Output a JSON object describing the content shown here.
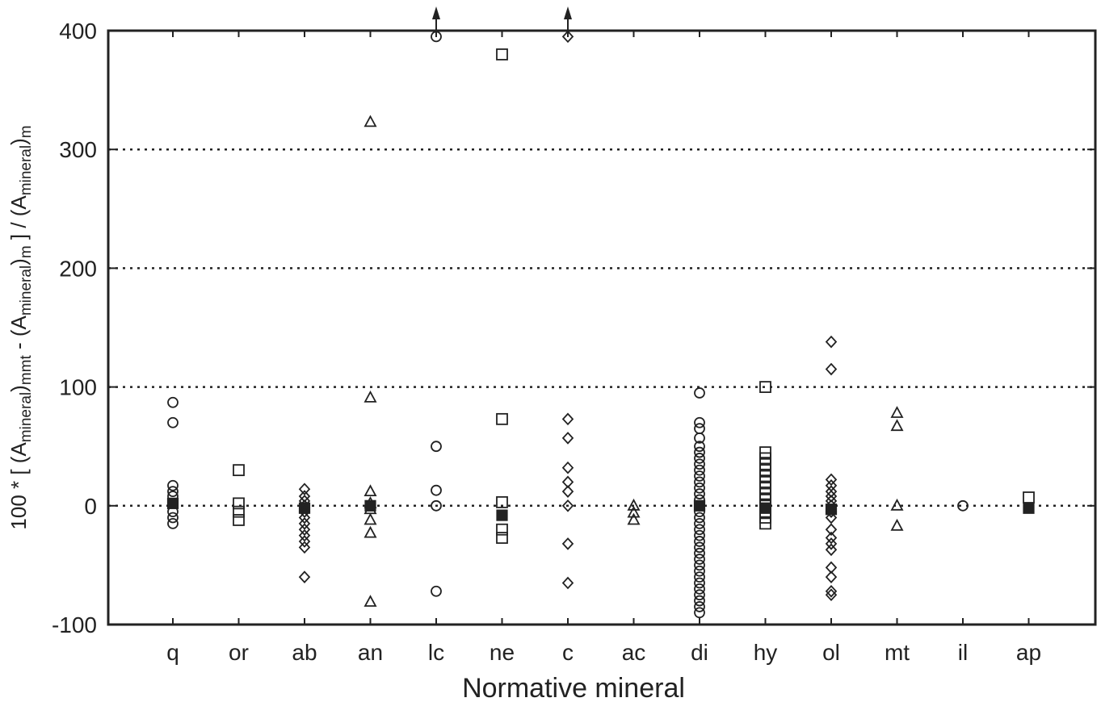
{
  "chart_data": {
    "type": "scatter",
    "xlabel": "Normative mineral",
    "ylabel_parts": [
      "100 * [ (A",
      "mineral",
      ")",
      "mmt",
      " - (A",
      "mineral",
      ")",
      "m",
      " ] / (A",
      "mineral",
      ")",
      "m"
    ],
    "categories": [
      "q",
      "or",
      "ab",
      "an",
      "lc",
      "ne",
      "c",
      "ac",
      "di",
      "hy",
      "ol",
      "mt",
      "il",
      "ap"
    ],
    "ylim": [
      -100,
      400
    ],
    "yticks": [
      -100,
      0,
      100,
      200,
      300,
      400
    ],
    "dotted_gridlines_at": [
      0,
      100,
      200,
      300
    ],
    "grid": "horizontal dotted",
    "off_scale_arrows": [
      "lc",
      "c"
    ],
    "series": [
      {
        "marker": "circle",
        "points": [
          {
            "cat": "q",
            "y": 87
          },
          {
            "cat": "q",
            "y": 70
          },
          {
            "cat": "q",
            "y": 17
          },
          {
            "cat": "q",
            "y": 12
          },
          {
            "cat": "q",
            "y": 8
          },
          {
            "cat": "q",
            "y": -5
          },
          {
            "cat": "q",
            "y": -10
          },
          {
            "cat": "q",
            "y": -15
          },
          {
            "cat": "lc",
            "y": 395
          },
          {
            "cat": "lc",
            "y": 50
          },
          {
            "cat": "lc",
            "y": 13
          },
          {
            "cat": "lc",
            "y": 0
          },
          {
            "cat": "lc",
            "y": -72
          },
          {
            "cat": "di",
            "y": 95
          },
          {
            "cat": "di",
            "y": 70
          },
          {
            "cat": "di",
            "y": 65
          },
          {
            "cat": "di",
            "y": 57
          },
          {
            "cat": "di",
            "y": 50
          },
          {
            "cat": "di",
            "y": 45
          },
          {
            "cat": "di",
            "y": 40
          },
          {
            "cat": "di",
            "y": 35
          },
          {
            "cat": "di",
            "y": 30
          },
          {
            "cat": "di",
            "y": 25
          },
          {
            "cat": "di",
            "y": 20
          },
          {
            "cat": "di",
            "y": 15
          },
          {
            "cat": "di",
            "y": 10
          },
          {
            "cat": "di",
            "y": 5
          },
          {
            "cat": "di",
            "y": 0
          },
          {
            "cat": "di",
            "y": -5
          },
          {
            "cat": "di",
            "y": -10
          },
          {
            "cat": "di",
            "y": -15
          },
          {
            "cat": "di",
            "y": -20
          },
          {
            "cat": "di",
            "y": -25
          },
          {
            "cat": "di",
            "y": -30
          },
          {
            "cat": "di",
            "y": -35
          },
          {
            "cat": "di",
            "y": -40
          },
          {
            "cat": "di",
            "y": -45
          },
          {
            "cat": "di",
            "y": -50
          },
          {
            "cat": "di",
            "y": -55
          },
          {
            "cat": "di",
            "y": -60
          },
          {
            "cat": "di",
            "y": -65
          },
          {
            "cat": "di",
            "y": -70
          },
          {
            "cat": "di",
            "y": -75
          },
          {
            "cat": "di",
            "y": -80
          },
          {
            "cat": "di",
            "y": -85
          },
          {
            "cat": "di",
            "y": -90
          },
          {
            "cat": "il",
            "y": 0
          }
        ]
      },
      {
        "marker": "square",
        "points": [
          {
            "cat": "or",
            "y": 30
          },
          {
            "cat": "or",
            "y": 2
          },
          {
            "cat": "or",
            "y": -5
          },
          {
            "cat": "or",
            "y": -12
          },
          {
            "cat": "ne",
            "y": 380
          },
          {
            "cat": "ne",
            "y": 73
          },
          {
            "cat": "ne",
            "y": 3
          },
          {
            "cat": "ne",
            "y": -20
          },
          {
            "cat": "ne",
            "y": -27
          },
          {
            "cat": "hy",
            "y": 100
          },
          {
            "cat": "hy",
            "y": 45
          },
          {
            "cat": "hy",
            "y": 40
          },
          {
            "cat": "hy",
            "y": 35
          },
          {
            "cat": "hy",
            "y": 30
          },
          {
            "cat": "hy",
            "y": 25
          },
          {
            "cat": "hy",
            "y": 20
          },
          {
            "cat": "hy",
            "y": 15
          },
          {
            "cat": "hy",
            "y": 10
          },
          {
            "cat": "hy",
            "y": 5
          },
          {
            "cat": "hy",
            "y": 0
          },
          {
            "cat": "hy",
            "y": -5
          },
          {
            "cat": "hy",
            "y": -10
          },
          {
            "cat": "hy",
            "y": -15
          },
          {
            "cat": "ap",
            "y": 7
          }
        ]
      },
      {
        "marker": "square-filled",
        "points": [
          {
            "cat": "q",
            "y": 2
          },
          {
            "cat": "ab",
            "y": -2
          },
          {
            "cat": "an",
            "y": 0
          },
          {
            "cat": "ne",
            "y": -8
          },
          {
            "cat": "di",
            "y": 0
          },
          {
            "cat": "hy",
            "y": -2
          },
          {
            "cat": "ol",
            "y": -3
          },
          {
            "cat": "ap",
            "y": -2
          }
        ]
      },
      {
        "marker": "triangle",
        "points": [
          {
            "cat": "an",
            "y": 323
          },
          {
            "cat": "an",
            "y": 91
          },
          {
            "cat": "an",
            "y": 12
          },
          {
            "cat": "an",
            "y": 2
          },
          {
            "cat": "an",
            "y": -3
          },
          {
            "cat": "an",
            "y": -12
          },
          {
            "cat": "an",
            "y": -23
          },
          {
            "cat": "an",
            "y": -81
          },
          {
            "cat": "ac",
            "y": 0
          },
          {
            "cat": "ac",
            "y": -6
          },
          {
            "cat": "ac",
            "y": -12
          },
          {
            "cat": "mt",
            "y": 78
          },
          {
            "cat": "mt",
            "y": 67
          },
          {
            "cat": "mt",
            "y": 0
          },
          {
            "cat": "mt",
            "y": -17
          }
        ]
      },
      {
        "marker": "diamond",
        "points": [
          {
            "cat": "ab",
            "y": 14
          },
          {
            "cat": "ab",
            "y": 8
          },
          {
            "cat": "ab",
            "y": 4
          },
          {
            "cat": "ab",
            "y": 0
          },
          {
            "cat": "ab",
            "y": -5
          },
          {
            "cat": "ab",
            "y": -10
          },
          {
            "cat": "ab",
            "y": -15
          },
          {
            "cat": "ab",
            "y": -20
          },
          {
            "cat": "ab",
            "y": -25
          },
          {
            "cat": "ab",
            "y": -30
          },
          {
            "cat": "ab",
            "y": -35
          },
          {
            "cat": "ab",
            "y": -60
          },
          {
            "cat": "c",
            "y": 395
          },
          {
            "cat": "c",
            "y": 73
          },
          {
            "cat": "c",
            "y": 57
          },
          {
            "cat": "c",
            "y": 32
          },
          {
            "cat": "c",
            "y": 20
          },
          {
            "cat": "c",
            "y": 12
          },
          {
            "cat": "c",
            "y": 0
          },
          {
            "cat": "c",
            "y": -32
          },
          {
            "cat": "c",
            "y": -65
          },
          {
            "cat": "ol",
            "y": 138
          },
          {
            "cat": "ol",
            "y": 115
          },
          {
            "cat": "ol",
            "y": 22
          },
          {
            "cat": "ol",
            "y": 17
          },
          {
            "cat": "ol",
            "y": 12
          },
          {
            "cat": "ol",
            "y": 8
          },
          {
            "cat": "ol",
            "y": 4
          },
          {
            "cat": "ol",
            "y": 0
          },
          {
            "cat": "ol",
            "y": -5
          },
          {
            "cat": "ol",
            "y": -10
          },
          {
            "cat": "ol",
            "y": -20
          },
          {
            "cat": "ol",
            "y": -27
          },
          {
            "cat": "ol",
            "y": -32
          },
          {
            "cat": "ol",
            "y": -37
          },
          {
            "cat": "ol",
            "y": -52
          },
          {
            "cat": "ol",
            "y": -60
          },
          {
            "cat": "ol",
            "y": -72
          },
          {
            "cat": "ol",
            "y": -75
          }
        ]
      }
    ]
  }
}
